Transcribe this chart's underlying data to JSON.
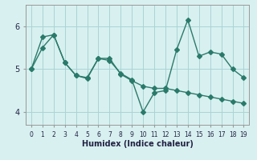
{
  "xlabel": "Humidex (Indice chaleur)",
  "background_color": "#d8f0f0",
  "line_color": "#2a7a6a",
  "x": [
    0,
    1,
    2,
    3,
    4,
    5,
    6,
    7,
    8,
    9,
    10,
    11,
    12,
    13,
    14,
    15,
    16,
    17,
    18,
    19
  ],
  "y_line1": [
    5.0,
    5.5,
    5.8,
    5.15,
    4.85,
    4.8,
    5.25,
    5.2,
    4.9,
    4.75,
    4.0,
    4.45,
    4.5,
    5.45,
    6.15,
    5.3,
    5.4,
    5.35,
    5.0,
    4.8
  ],
  "y_line2": [
    5.0,
    5.75,
    5.8,
    5.15,
    4.85,
    4.78,
    5.25,
    5.25,
    4.88,
    4.73,
    4.6,
    4.55,
    4.55,
    4.5,
    4.45,
    4.4,
    4.35,
    4.3,
    4.25,
    4.2
  ],
  "ylim": [
    3.7,
    6.5
  ],
  "yticks": [
    4,
    5,
    6
  ],
  "xlim": [
    -0.5,
    19.5
  ],
  "grid_color": "#aad4d4",
  "markersize": 3,
  "linewidth": 1.0
}
